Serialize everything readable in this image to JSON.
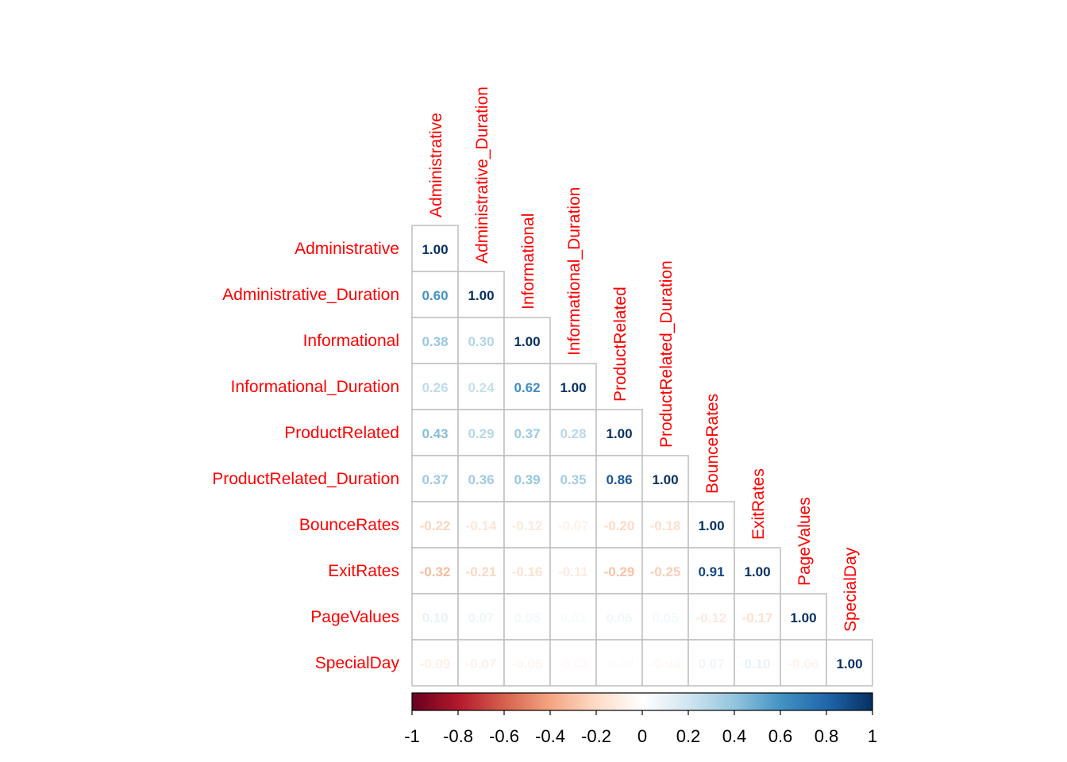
{
  "chart_data": {
    "type": "heatmap",
    "subtype": "correlation-matrix-lower-triangle",
    "title": "",
    "variables": [
      "Administrative",
      "Administrative_Duration",
      "Informational",
      "Informational_Duration",
      "ProductRelated",
      "ProductRelated_Duration",
      "BounceRates",
      "ExitRates",
      "PageValues",
      "SpecialDay"
    ],
    "matrix": [
      [
        1.0
      ],
      [
        0.6,
        1.0
      ],
      [
        0.38,
        0.3,
        1.0
      ],
      [
        0.26,
        0.24,
        0.62,
        1.0
      ],
      [
        0.43,
        0.29,
        0.37,
        0.28,
        1.0
      ],
      [
        0.37,
        0.36,
        0.39,
        0.35,
        0.86,
        1.0
      ],
      [
        -0.22,
        -0.14,
        -0.12,
        -0.07,
        -0.2,
        -0.18,
        1.0
      ],
      [
        -0.32,
        -0.21,
        -0.16,
        -0.11,
        -0.29,
        -0.25,
        0.91,
        1.0
      ],
      [
        0.1,
        0.07,
        0.05,
        0.03,
        0.06,
        0.05,
        -0.12,
        -0.17,
        1.0
      ],
      [
        -0.09,
        -0.07,
        -0.05,
        -0.03,
        -0.02,
        -0.04,
        0.07,
        0.1,
        -0.06,
        1.0
      ]
    ],
    "value_format": "2 decimals",
    "label_color": "#FF0000",
    "colorbar": {
      "range": [
        -1,
        1
      ],
      "ticks": [
        "-1",
        "-0.8",
        "-0.6",
        "-0.4",
        "-0.2",
        "0",
        "0.2",
        "0.4",
        "0.6",
        "0.8",
        "1"
      ],
      "placement": "bottom",
      "colors": [
        "#67001F",
        "#B2182B",
        "#D6604D",
        "#F4A582",
        "#FDDBC7",
        "#FFFFFF",
        "#D1E5F0",
        "#92C5DE",
        "#4393C3",
        "#2166AC",
        "#053061"
      ]
    },
    "grid_color": "#BEBEBE"
  }
}
